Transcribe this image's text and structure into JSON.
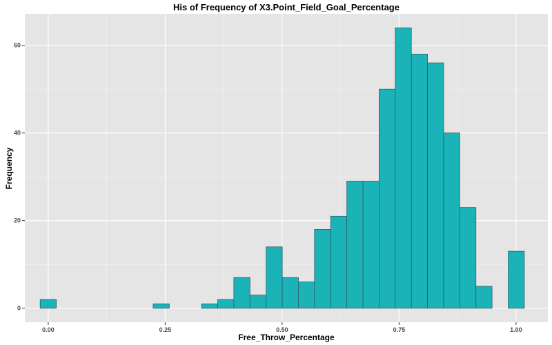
{
  "chart_data": {
    "type": "bar",
    "title": "His of Frequency of X3.Point_Field_Goal_Percentage",
    "xlabel": "Free_Throw_Percentage",
    "ylabel": "Frequency",
    "bin_width": 0.0345,
    "bins": [
      {
        "center": 0.0,
        "count": 2
      },
      {
        "center": 0.0345,
        "count": 0
      },
      {
        "center": 0.069,
        "count": 0
      },
      {
        "center": 0.1035,
        "count": 0
      },
      {
        "center": 0.138,
        "count": 0
      },
      {
        "center": 0.1725,
        "count": 0
      },
      {
        "center": 0.207,
        "count": 0
      },
      {
        "center": 0.2415,
        "count": 1
      },
      {
        "center": 0.276,
        "count": 0
      },
      {
        "center": 0.3105,
        "count": 0
      },
      {
        "center": 0.345,
        "count": 1
      },
      {
        "center": 0.3795,
        "count": 2
      },
      {
        "center": 0.414,
        "count": 7
      },
      {
        "center": 0.4485,
        "count": 3
      },
      {
        "center": 0.483,
        "count": 14
      },
      {
        "center": 0.5175,
        "count": 7
      },
      {
        "center": 0.552,
        "count": 6
      },
      {
        "center": 0.5865,
        "count": 18
      },
      {
        "center": 0.621,
        "count": 21
      },
      {
        "center": 0.6555,
        "count": 29
      },
      {
        "center": 0.69,
        "count": 29
      },
      {
        "center": 0.7245,
        "count": 50
      },
      {
        "center": 0.759,
        "count": 64
      },
      {
        "center": 0.7935,
        "count": 58
      },
      {
        "center": 0.828,
        "count": 56
      },
      {
        "center": 0.8625,
        "count": 40
      },
      {
        "center": 0.897,
        "count": 23
      },
      {
        "center": 0.9315,
        "count": 5
      },
      {
        "center": 0.966,
        "count": 0
      },
      {
        "center": 1.0005,
        "count": 13
      }
    ],
    "xlim": [
      -0.05,
      1.068
    ],
    "ylim": [
      -3.2,
      67.2
    ],
    "x_ticks": [
      {
        "value": 0.0,
        "label": "0.00"
      },
      {
        "value": 0.25,
        "label": "0.25"
      },
      {
        "value": 0.5,
        "label": "0.50"
      },
      {
        "value": 0.75,
        "label": "0.75"
      },
      {
        "value": 1.0,
        "label": "1.00"
      }
    ],
    "y_ticks": [
      {
        "value": 0,
        "label": "0"
      },
      {
        "value": 20,
        "label": "20"
      },
      {
        "value": 40,
        "label": "40"
      },
      {
        "value": 60,
        "label": "60"
      }
    ],
    "grid": true,
    "colors": {
      "panel": "#e5e5e5",
      "bar_fill": "#19b3b8",
      "bar_outline": "#2f5f66"
    }
  }
}
